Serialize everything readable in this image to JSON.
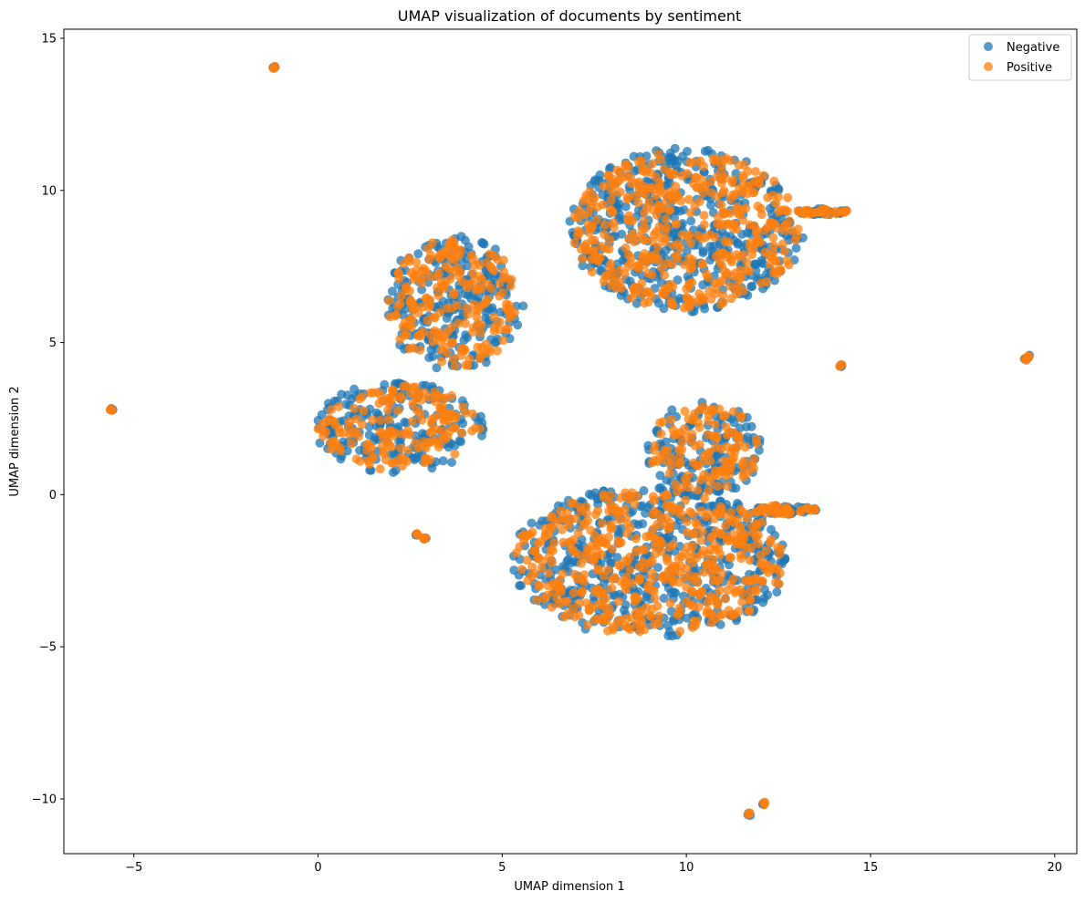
{
  "chart_data": {
    "type": "scatter",
    "title": "UMAP visualization of documents by sentiment",
    "xlabel": "UMAP dimension 1",
    "ylabel": "UMAP dimension 2",
    "xlim": [
      -6.9,
      20.6
    ],
    "ylim": [
      -11.8,
      15.3
    ],
    "xticks": [
      -5,
      0,
      5,
      10,
      15,
      20
    ],
    "yticks": [
      -10,
      -5,
      0,
      5,
      10,
      15
    ],
    "xtick_labels": [
      "−5",
      "0",
      "5",
      "10",
      "15",
      "20"
    ],
    "ytick_labels": [
      "−10",
      "−5",
      "0",
      "5",
      "10",
      "15"
    ],
    "grid": false,
    "legend_position": "top-right",
    "series": [
      {
        "name": "Negative",
        "color": "#1f77b4",
        "clusters": [
          {
            "cx": 10.0,
            "cy": 8.7,
            "rx": 3.2,
            "ry": 2.7
          },
          {
            "cx": 3.7,
            "cy": 6.3,
            "rx": 1.9,
            "ry": 2.2
          },
          {
            "cx": 2.2,
            "cy": 2.2,
            "rx": 2.3,
            "ry": 1.5
          },
          {
            "cx": 9.0,
            "cy": -2.2,
            "rx": 3.8,
            "ry": 2.5
          },
          {
            "cx": 10.5,
            "cy": 1.5,
            "rx": 1.6,
            "ry": 1.6
          },
          {
            "cx": 13.7,
            "cy": 9.3,
            "rx": 0.7,
            "ry": 0.1
          },
          {
            "cx": 12.6,
            "cy": -0.5,
            "rx": 0.8,
            "ry": 0.15
          }
        ],
        "outliers": [
          {
            "x": -1.2,
            "y": 14.05
          },
          {
            "x": -5.6,
            "y": 2.8
          },
          {
            "x": 14.2,
            "y": 4.25
          },
          {
            "x": 19.3,
            "y": 4.55
          },
          {
            "x": 19.2,
            "y": 4.45
          },
          {
            "x": 12.1,
            "y": -10.15
          },
          {
            "x": 11.7,
            "y": -10.5
          },
          {
            "x": 2.7,
            "y": -1.3
          },
          {
            "x": 2.9,
            "y": -1.45
          },
          {
            "x": 13.5,
            "y": -0.5
          }
        ]
      },
      {
        "name": "Positive",
        "color": "#ff7f0e",
        "clusters": [
          {
            "cx": 10.0,
            "cy": 8.7,
            "rx": 3.1,
            "ry": 2.6
          },
          {
            "cx": 3.7,
            "cy": 6.3,
            "rx": 1.8,
            "ry": 2.1
          },
          {
            "cx": 2.2,
            "cy": 2.2,
            "rx": 2.2,
            "ry": 1.4
          },
          {
            "cx": 9.0,
            "cy": -2.2,
            "rx": 3.7,
            "ry": 2.4
          },
          {
            "cx": 10.5,
            "cy": 1.5,
            "rx": 1.5,
            "ry": 1.5
          },
          {
            "cx": 13.7,
            "cy": 9.3,
            "rx": 0.7,
            "ry": 0.1
          },
          {
            "cx": 12.6,
            "cy": -0.5,
            "rx": 0.8,
            "ry": 0.15
          }
        ],
        "outliers": [
          {
            "x": -1.2,
            "y": 14.05
          },
          {
            "x": -5.6,
            "y": 2.8
          },
          {
            "x": 14.2,
            "y": 4.25
          },
          {
            "x": 19.3,
            "y": 4.55
          },
          {
            "x": 19.2,
            "y": 4.45
          },
          {
            "x": 12.1,
            "y": -10.15
          },
          {
            "x": 11.7,
            "y": -10.5
          },
          {
            "x": 2.7,
            "y": -1.3
          },
          {
            "x": 2.9,
            "y": -1.45
          },
          {
            "x": 13.5,
            "y": -0.5
          }
        ]
      }
    ]
  }
}
